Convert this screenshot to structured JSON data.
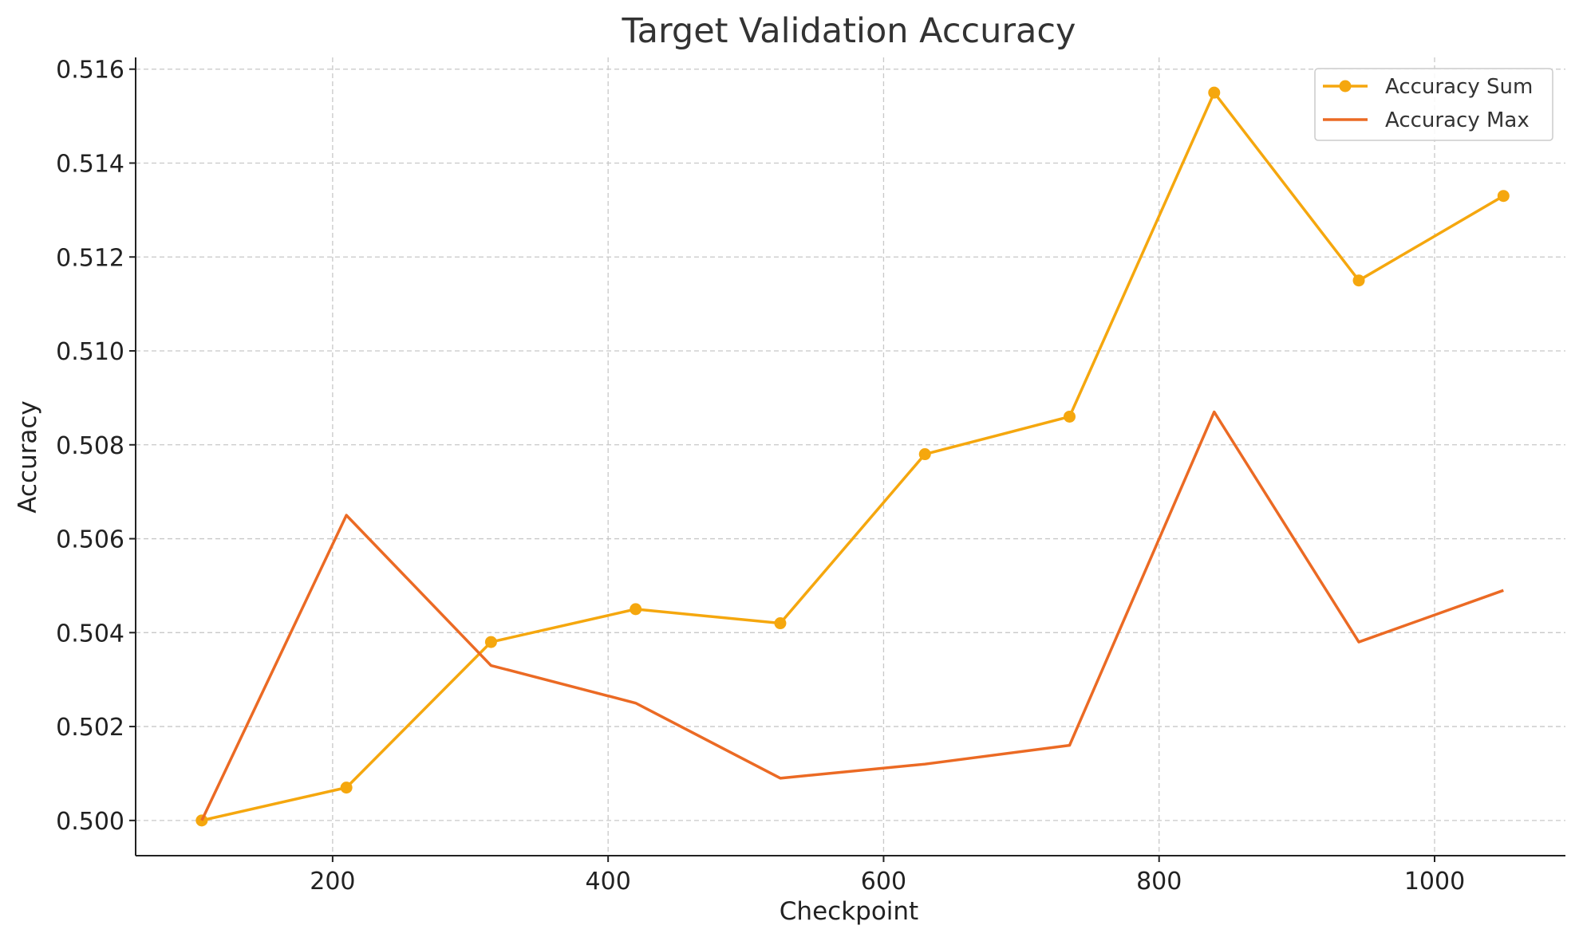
{
  "chart_data": {
    "type": "line",
    "title": "Target Validation Accuracy",
    "xlabel": "Checkpoint",
    "ylabel": "Accuracy",
    "xlim": [
      57,
      1095
    ],
    "ylim": [
      0.49925,
      0.51625
    ],
    "xticks": [
      200,
      400,
      600,
      800,
      1000
    ],
    "yticks": [
      0.5,
      0.502,
      0.504,
      0.506,
      0.508,
      0.51,
      0.512,
      0.514,
      0.516
    ],
    "grid": true,
    "legend_position": "top-right",
    "x": [
      105,
      210,
      315,
      420,
      525,
      630,
      735,
      840,
      945,
      1050
    ],
    "series": [
      {
        "name": "Accuracy Sum",
        "color": "#F5A70E",
        "marker": "circle",
        "values": [
          0.5,
          0.5007,
          0.5038,
          0.5045,
          0.5042,
          0.5078,
          0.5086,
          0.5155,
          0.5115,
          0.5133
        ]
      },
      {
        "name": "Accuracy Max",
        "color": "#EB6A24",
        "marker": "none",
        "values": [
          0.5,
          0.5065,
          0.5033,
          0.5025,
          0.5009,
          0.5012,
          0.5016,
          0.5087,
          0.5038,
          0.5049
        ]
      }
    ]
  }
}
